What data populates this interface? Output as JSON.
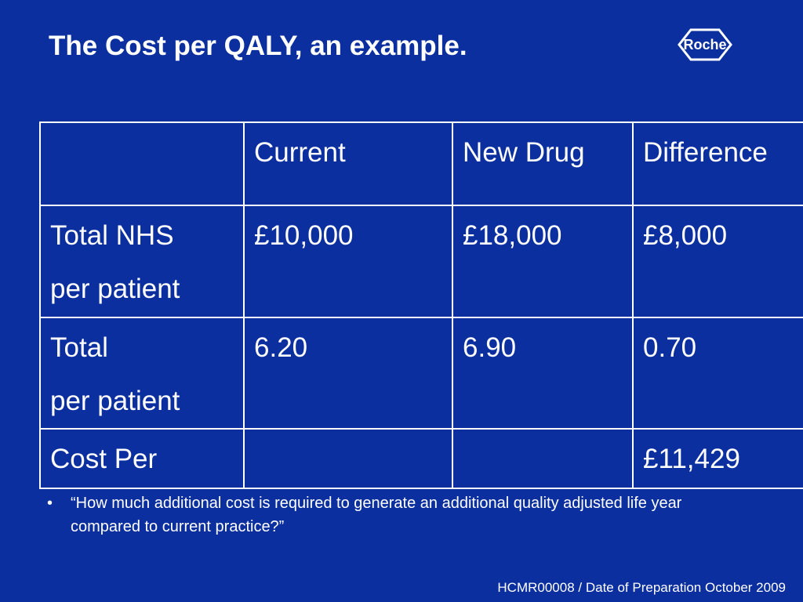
{
  "slide": {
    "title": "The Cost per QALY, an example.",
    "logo": {
      "text": "Roche",
      "icon": "roche-logo-icon"
    },
    "table": {
      "headers": [
        "",
        "Current",
        "New Drug",
        "Difference"
      ],
      "rows": [
        {
          "label_line1": "Total NHS",
          "label_line2": "per patient",
          "current": "£10,000",
          "new_drug": "£18,000",
          "difference": "£8,000"
        },
        {
          "label_line1": "Total",
          "label_line2": "per patient",
          "current": "6.20",
          "new_drug": "6.90",
          "difference": "0.70"
        },
        {
          "label_line1": "Cost Per",
          "label_line2": "",
          "current": "",
          "new_drug": "",
          "difference": "£11,429"
        }
      ]
    },
    "bullet": {
      "marker": "•",
      "text": "“How much additional cost is required to generate an additional quality adjusted life year compared to current practice?”"
    },
    "footer": "HCMR00008 / Date of Preparation October 2009"
  }
}
